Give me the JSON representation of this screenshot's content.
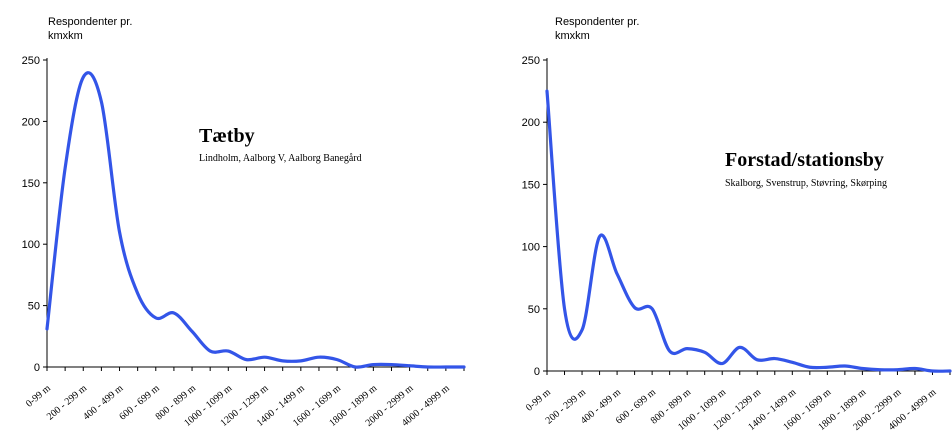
{
  "chart_data": [
    {
      "type": "line",
      "title": "Tætby",
      "subtitle": "Lindholm, Aalborg V, Aalborg Banegård",
      "ylabel": "Respondenter pr. kmxkm",
      "ylabel_lines": [
        "Respondenter pr.",
        "kmxkm"
      ],
      "ylim": [
        0,
        250
      ],
      "yticks": [
        0,
        50,
        100,
        150,
        200,
        250
      ],
      "categories": [
        "0-99 m",
        "200 - 299 m",
        "400 - 499 m",
        "600 - 699 m",
        "800 - 899 m",
        "1000 - 1099 m",
        "1200 - 1299 m",
        "1400 - 1499 m",
        "1600 - 1699 m",
        "1800 - 1899 m",
        "2000 - 2999 m",
        "4000 - 4999 m"
      ],
      "x": [
        0,
        1,
        2,
        3,
        4,
        5,
        6,
        7,
        8,
        9,
        10,
        11,
        12,
        13,
        14,
        15,
        16,
        17,
        18,
        19,
        20,
        21,
        22,
        23
      ],
      "values": [
        31,
        162,
        236,
        216,
        110,
        60,
        40,
        44,
        29,
        13,
        13,
        6,
        8,
        5,
        5,
        8,
        6,
        0,
        2,
        2,
        1,
        0,
        0,
        0
      ],
      "color": "#3355e8",
      "grid": false,
      "legend": "none"
    },
    {
      "type": "line",
      "title": "Forstad/stationsby",
      "subtitle": "Skalborg, Svenstrup, Støvring, Skørping",
      "ylabel": "Respondenter pr. kmxkm",
      "ylabel_lines": [
        "Respondenter pr.",
        "kmxkm"
      ],
      "ylim": [
        0,
        250
      ],
      "yticks": [
        0,
        50,
        100,
        150,
        200,
        250
      ],
      "categories": [
        "0-99 m",
        "200 - 299 m",
        "400 - 499 m",
        "600 - 699 m",
        "800 - 899 m",
        "1000 - 1099 m",
        "1200 - 1299 m",
        "1400 - 1499 m",
        "1600 - 1699 m",
        "1800 - 1899 m",
        "2000 - 2999 m",
        "4000 - 4999 m"
      ],
      "x": [
        0,
        1,
        2,
        3,
        4,
        5,
        6,
        7,
        8,
        9,
        10,
        11,
        12,
        13,
        14,
        15,
        16,
        17,
        18,
        19,
        20,
        21,
        22,
        23
      ],
      "values": [
        225,
        50,
        33,
        108,
        78,
        51,
        50,
        16,
        18,
        15,
        6,
        19,
        9,
        10,
        7,
        3,
        3,
        4,
        2,
        1,
        1,
        2,
        0,
        0
      ],
      "color": "#3355e8",
      "grid": false,
      "legend": "none"
    }
  ]
}
